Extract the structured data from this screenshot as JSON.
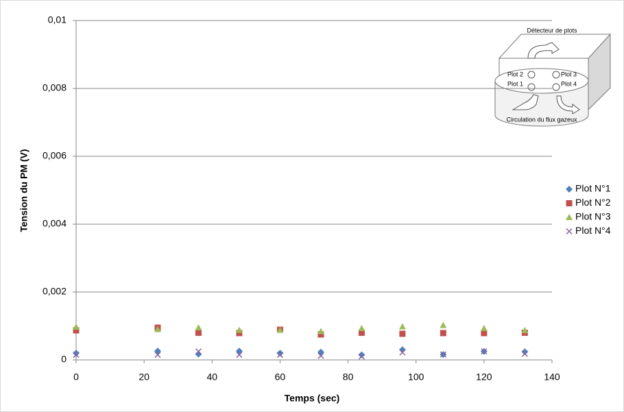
{
  "chart_data": {
    "type": "scatter",
    "xlabel": "Temps (sec)",
    "ylabel": "Tension du PM (V)",
    "xlim": [
      0,
      140
    ],
    "xticks": [
      0,
      20,
      40,
      60,
      80,
      100,
      120,
      140
    ],
    "ylim": [
      0,
      0.01
    ],
    "yticks": [
      0,
      {
        "value": 0.002,
        "label": "0,002"
      },
      {
        "value": 0.004,
        "label": "0,004"
      },
      {
        "value": 0.006,
        "label": "0,006"
      },
      {
        "value": 0.008,
        "label": "0,008"
      },
      {
        "value": 0.01,
        "label": "0,01"
      }
    ],
    "grid": true,
    "legend": "right",
    "x": [
      0,
      24,
      36,
      48,
      60,
      72,
      84,
      96,
      108,
      120,
      132
    ],
    "series": [
      {
        "name": "Plot N°1",
        "color": "#4f81bd",
        "marker": "diamond",
        "values": [
          0.0002,
          0.00026,
          0.00017,
          0.00026,
          0.0002,
          0.00023,
          0.00015,
          0.0003,
          0.00016,
          0.00025,
          0.00024
        ]
      },
      {
        "name": "Plot N°2",
        "color": "#c0504d",
        "marker": "square",
        "values": [
          0.00087,
          0.00095,
          0.0008,
          0.00079,
          0.00089,
          0.00075,
          0.0008,
          0.00077,
          0.00079,
          0.00079,
          0.0008
        ]
      },
      {
        "name": "Plot N°3",
        "color": "#9bbb59",
        "marker": "triangle",
        "values": [
          0.00097,
          0.0009,
          0.00095,
          0.00088,
          0.00088,
          0.00084,
          0.00093,
          0.00098,
          0.00102,
          0.00093,
          0.00087
        ]
      },
      {
        "name": "Plot N°4",
        "color": "#8064a2",
        "marker": "x",
        "values": [
          0.00015,
          0.00015,
          0.00025,
          0.00015,
          0.00015,
          0.00012,
          0.0001,
          0.00022,
          0.00016,
          0.00025,
          0.00018
        ]
      }
    ],
    "annotations": [
      "Détecteur de plots",
      "Plot 2",
      "Plot 3",
      "Plot 1",
      "Plot 4",
      "Circulation du flux gazeux"
    ]
  }
}
